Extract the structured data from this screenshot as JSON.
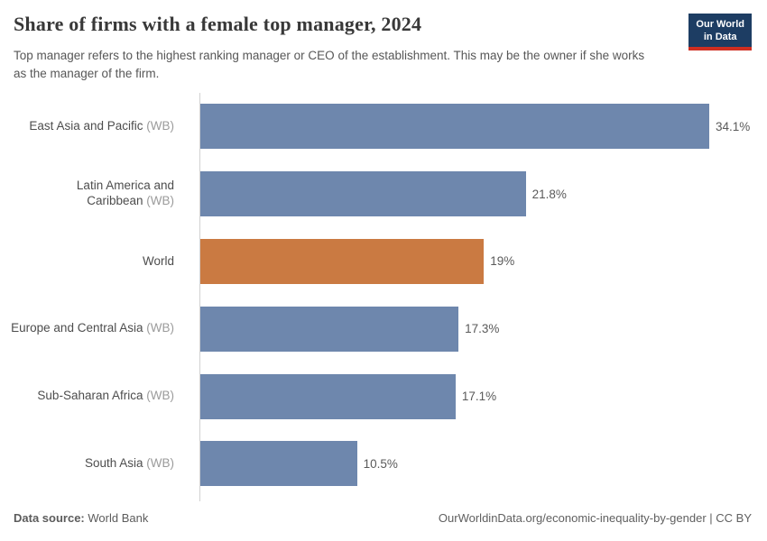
{
  "header": {
    "title": "Share of firms with a female top manager, 2024",
    "subtitle": "Top manager refers to the highest ranking manager or CEO of the establishment. This may be the owner if she works as the manager of the firm.",
    "logo": {
      "line1": "Our World",
      "line2": "in Data",
      "bg_color": "#1d3d63",
      "accent_color": "#cf2e21"
    }
  },
  "chart_data": {
    "type": "bar",
    "orientation": "horizontal",
    "title": "Share of firms with a female top manager, 2024",
    "unit": "%",
    "xlim": [
      0,
      34.1
    ],
    "grid": false,
    "bar_color_default": "#6e87ad",
    "bar_color_highlight": "#ca7a42",
    "highlight_index": 2,
    "categories": [
      "East Asia and Pacific (WB)",
      "Latin America and Caribbean (WB)",
      "World",
      "Europe and Central Asia (WB)",
      "Sub-Saharan Africa (WB)",
      "South Asia (WB)"
    ],
    "rows": [
      {
        "label": "East Asia and Pacific",
        "suffix": "(WB)",
        "value": 34.1,
        "display": "34.1%",
        "color": "#6e87ad"
      },
      {
        "label": "Latin America and Caribbean",
        "suffix": "(WB)",
        "value": 21.8,
        "display": "21.8%",
        "color": "#6e87ad"
      },
      {
        "label": "World",
        "suffix": "",
        "value": 19,
        "display": "19%",
        "color": "#ca7a42"
      },
      {
        "label": "Europe and Central Asia",
        "suffix": "(WB)",
        "value": 17.3,
        "display": "17.3%",
        "color": "#6e87ad"
      },
      {
        "label": "Sub-Saharan Africa",
        "suffix": "(WB)",
        "value": 17.1,
        "display": "17.1%",
        "color": "#6e87ad"
      },
      {
        "label": "South Asia",
        "suffix": "(WB)",
        "value": 10.5,
        "display": "10.5%",
        "color": "#6e87ad"
      }
    ]
  },
  "footer": {
    "datasource_label": "Data source:",
    "datasource_value": "World Bank",
    "url": "OurWorldinData.org/economic-inequality-by-gender",
    "separator": " | ",
    "license": "CC BY"
  }
}
